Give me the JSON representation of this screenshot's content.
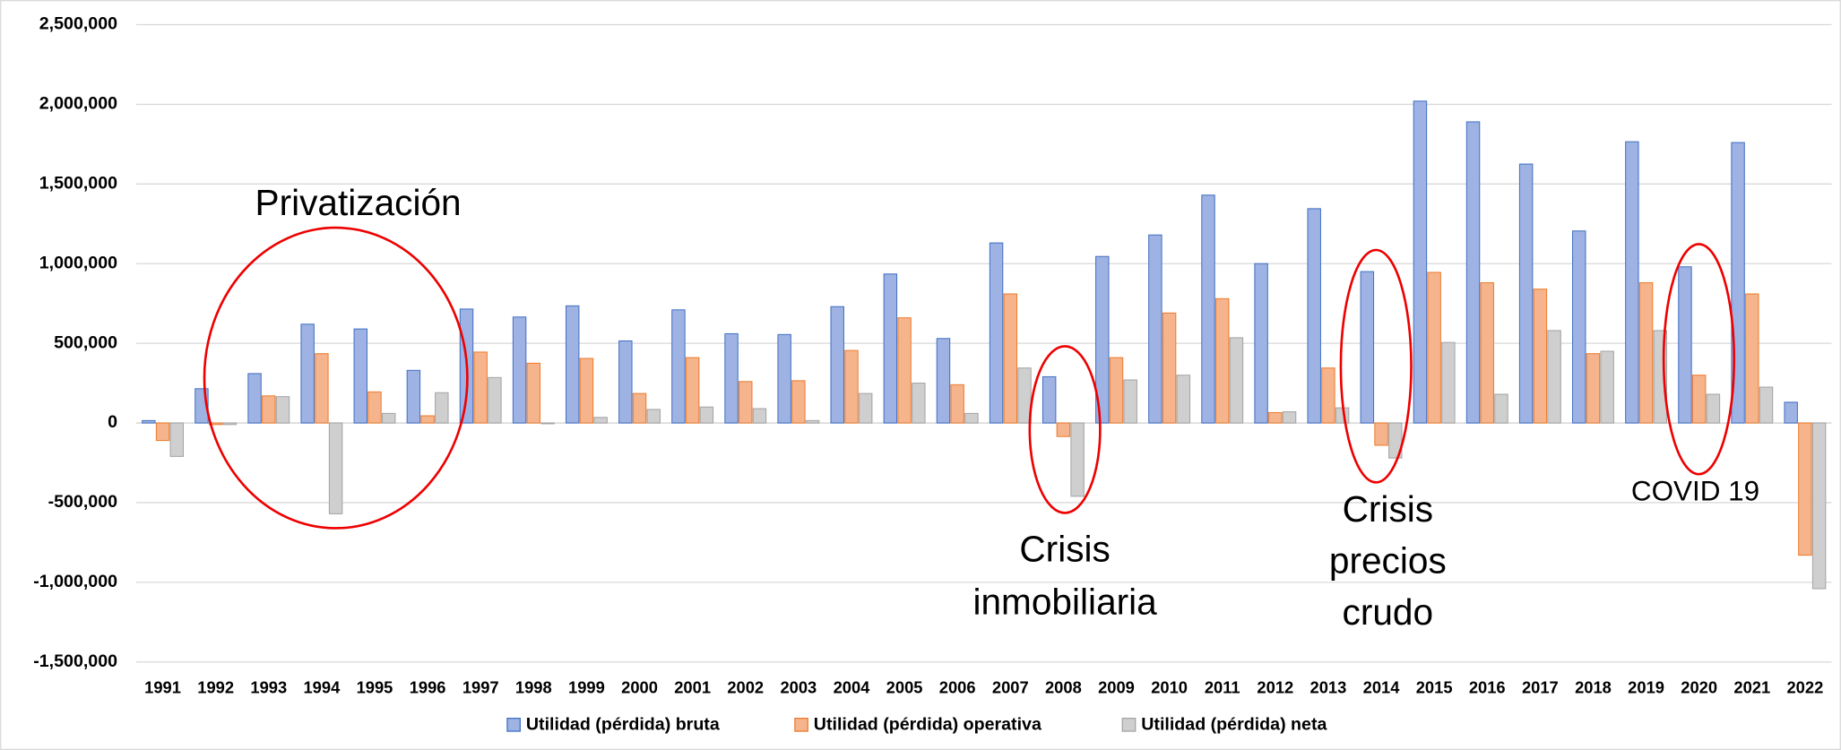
{
  "chart_data": {
    "type": "bar",
    "categories": [
      "1991",
      "1992",
      "1993",
      "1994",
      "1995",
      "1996",
      "1997",
      "1998",
      "1999",
      "2000",
      "2001",
      "2002",
      "2003",
      "2004",
      "2005",
      "2006",
      "2007",
      "2008",
      "2009",
      "2010",
      "2011",
      "2012",
      "2013",
      "2014",
      "2015",
      "2016",
      "2017",
      "2018",
      "2019",
      "2020",
      "2021",
      "2022"
    ],
    "series": [
      {
        "name": "Utilidad (pérdida) bruta",
        "color": "#4472c4",
        "values": [
          15000,
          215000,
          310000,
          620000,
          590000,
          330000,
          715000,
          665000,
          735000,
          515000,
          710000,
          560000,
          555000,
          730000,
          935000,
          530000,
          1130000,
          290000,
          1045000,
          1180000,
          1430000,
          1000000,
          1345000,
          950000,
          2020000,
          1890000,
          1625000,
          1205000,
          1765000,
          980000,
          1760000,
          130000
        ]
      },
      {
        "name": "Utilidad (pérdida) operativa",
        "color": "#ed7d31",
        "values": [
          -110000,
          -10000,
          170000,
          435000,
          195000,
          45000,
          445000,
          375000,
          405000,
          185000,
          410000,
          260000,
          265000,
          455000,
          660000,
          240000,
          810000,
          -85000,
          410000,
          690000,
          780000,
          65000,
          345000,
          -140000,
          945000,
          880000,
          840000,
          435000,
          880000,
          300000,
          810000,
          -830000
        ]
      },
      {
        "name": "Utilidad (pérdida) neta",
        "color": "#a5a5a5",
        "values": [
          -210000,
          -10000,
          165000,
          -570000,
          60000,
          190000,
          285000,
          -5000,
          35000,
          85000,
          100000,
          90000,
          15000,
          185000,
          250000,
          60000,
          345000,
          -460000,
          270000,
          300000,
          535000,
          70000,
          95000,
          -220000,
          505000,
          180000,
          580000,
          450000,
          580000,
          180000,
          225000,
          -1040000
        ]
      }
    ],
    "ylim": [
      -1500000,
      2500000
    ],
    "yticks": [
      {
        "value": -1500000,
        "label": "-1,500,000"
      },
      {
        "value": -1000000,
        "label": "-1,000,000"
      },
      {
        "value": -500000,
        "label": "-500,000"
      },
      0,
      {
        "value": 500000,
        "label": "500,000"
      },
      {
        "value": 1000000,
        "label": "1,000,000"
      },
      {
        "value": 1500000,
        "label": "1,500,000"
      },
      {
        "value": 2000000,
        "label": "2,000,000"
      },
      {
        "value": 2500000,
        "label": "2,500,000"
      }
    ],
    "grid": true,
    "legend": "bottom",
    "annotations": [
      {
        "lines": [
          "Privatización"
        ]
      },
      {
        "lines": [
          "Crisis",
          "inmobiliaria"
        ]
      },
      {
        "lines": [
          "Crisis",
          "precios",
          "crudo"
        ]
      },
      {
        "lines": [
          "COVID 19"
        ]
      }
    ]
  }
}
